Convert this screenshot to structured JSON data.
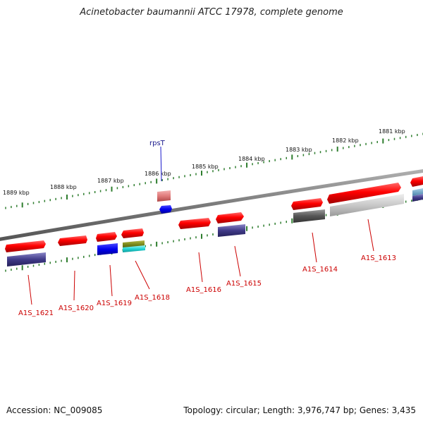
{
  "title": "Acinetobacter baumannii ATCC 17978, complete genome",
  "footer": {
    "accession": "Accession: NC_009085",
    "topology": "Topology: circular; Length: 3,976,747 bp; Genes: 3,435"
  },
  "colors": {
    "backbone": "#808080",
    "ticks": "#2e7d2e",
    "gene": "#ff0000",
    "gene_label": "#cc0000",
    "gene_name_label": "#1a1a8c"
  },
  "scale": {
    "unit": "kbp",
    "labels": [
      "1889 kbp",
      "1888 kbp",
      "1887 kbp",
      "1886 kbp",
      "1885 kbp",
      "1884 kbp",
      "1883 kbp",
      "1882 kbp",
      "1881 kbp"
    ]
  },
  "genes": [
    {
      "id": "A1S_1621",
      "label": "A1S_1621"
    },
    {
      "id": "A1S_1620",
      "label": "A1S_1620"
    },
    {
      "id": "A1S_1619",
      "label": "A1S_1619"
    },
    {
      "id": "A1S_1618",
      "label": "A1S_1618"
    },
    {
      "id": "rpsT",
      "label": "rpsT"
    },
    {
      "id": "A1S_1616",
      "label": "A1S_1616"
    },
    {
      "id": "A1S_1615",
      "label": "A1S_1615"
    },
    {
      "id": "A1S_1614",
      "label": "A1S_1614"
    },
    {
      "id": "A1S_1613",
      "label": "A1S_1613"
    }
  ]
}
